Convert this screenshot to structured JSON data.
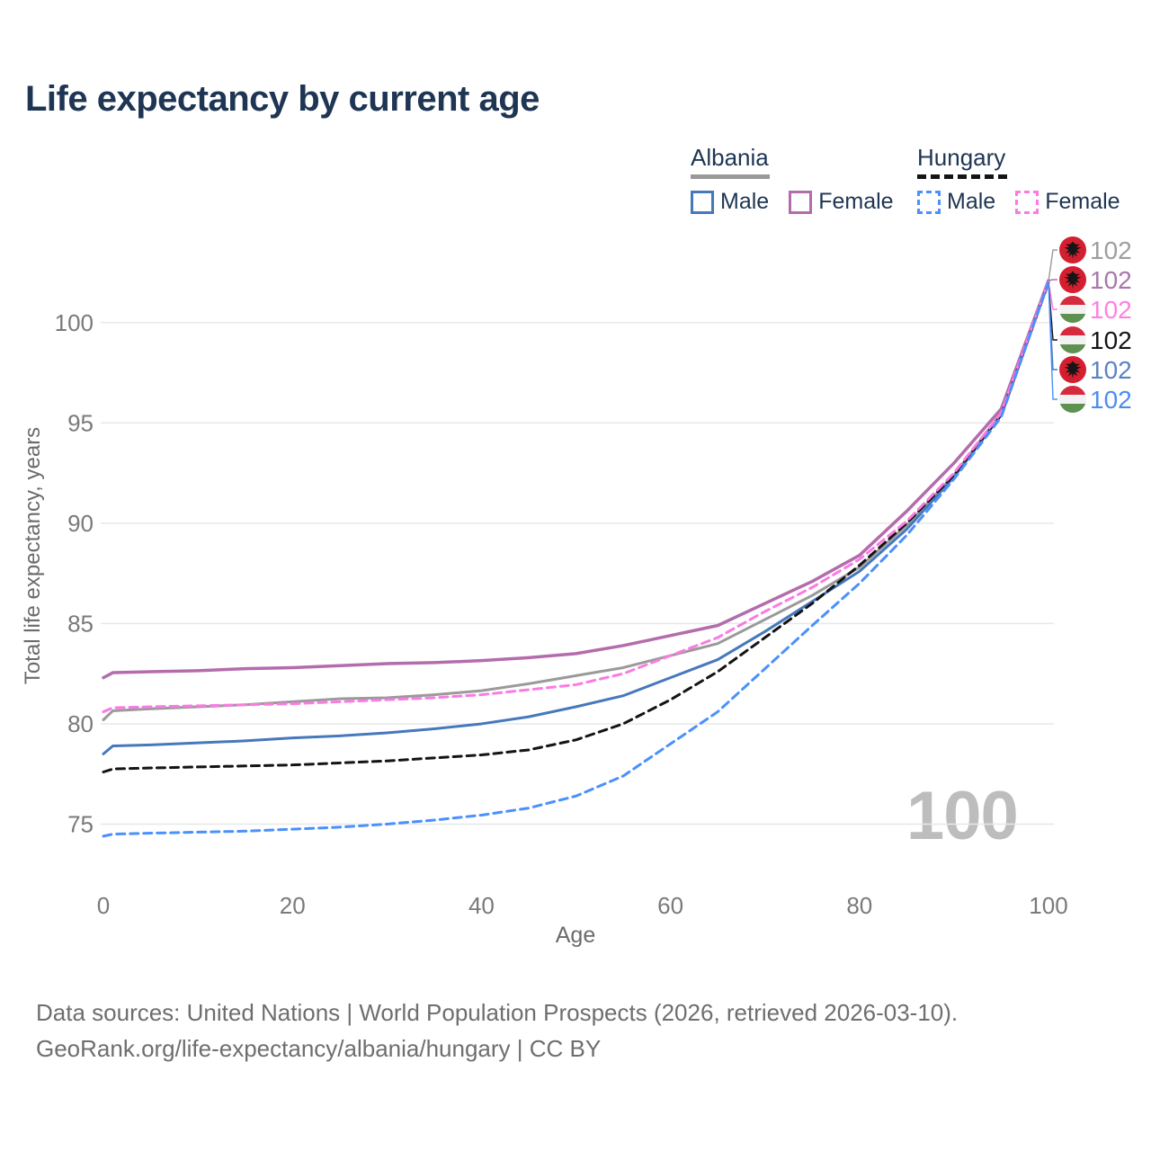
{
  "title": "Life expectancy by current age",
  "watermark_age": "100",
  "legend": {
    "groups": [
      {
        "label": "Albania",
        "underline_style": "solid",
        "underline_color": "#999999",
        "items": [
          {
            "label": "Male",
            "color": "#4678bc",
            "dashed": false
          },
          {
            "label": "Female",
            "color": "#b36cac",
            "dashed": false
          }
        ]
      },
      {
        "label": "Hungary",
        "underline_style": "dashed",
        "underline_color": "#141414",
        "items": [
          {
            "label": "Male",
            "color": "#4a90fe",
            "dashed": true
          },
          {
            "label": "Female",
            "color": "#fb7ae3",
            "dashed": true
          }
        ]
      }
    ]
  },
  "footer": {
    "line1": "Data sources: United Nations | World Population Prospects (2026, retrieved 2026-03-10).",
    "line2": "GeoRank.org/life-expectancy/albania/hungary | CC BY"
  },
  "end_labels": [
    {
      "series_key": "albania_total",
      "flag": "albania",
      "value": "102",
      "color": "#9e9e9e"
    },
    {
      "series_key": "albania_female",
      "flag": "albania",
      "value": "102",
      "color": "#a877ab"
    },
    {
      "series_key": "hungary_female",
      "flag": "hungary",
      "value": "102",
      "color": "#ff80e5"
    },
    {
      "series_key": "hungary_total",
      "flag": "hungary",
      "value": "102",
      "color": "#141414"
    },
    {
      "series_key": "albania_male",
      "flag": "albania",
      "value": "102",
      "color": "#5b83c3"
    },
    {
      "series_key": "hungary_male",
      "flag": "hungary",
      "value": "102",
      "color": "#4a8df0"
    }
  ],
  "chart_data": {
    "type": "line",
    "title": "Life expectancy by current age",
    "xlabel": "Age",
    "ylabel": "Total life expectancy, years",
    "xlim": [
      0,
      100
    ],
    "ylim": [
      73.5,
      103
    ],
    "x_ticks": [
      0,
      20,
      40,
      60,
      80,
      100
    ],
    "y_ticks": [
      75,
      80,
      85,
      90,
      95,
      100
    ],
    "grid": "horizontal",
    "legend_position": "top-right",
    "x": [
      0,
      1,
      5,
      10,
      15,
      20,
      25,
      30,
      35,
      40,
      45,
      50,
      55,
      60,
      65,
      70,
      75,
      80,
      85,
      90,
      95,
      100
    ],
    "series": [
      {
        "key": "albania_total",
        "name": "Albania — Both sexes",
        "country": "Albania",
        "sex": "Both",
        "color": "#9a9a9a",
        "dashed": false,
        "width": 3,
        "values": [
          80.2,
          80.65,
          80.75,
          80.85,
          80.95,
          81.1,
          81.25,
          81.3,
          81.45,
          81.65,
          82.0,
          82.4,
          82.8,
          83.4,
          84.0,
          85.2,
          86.4,
          87.8,
          89.9,
          92.4,
          95.5,
          102.05
        ]
      },
      {
        "key": "albania_female",
        "name": "Albania — Female",
        "country": "Albania",
        "sex": "Female",
        "color": "#b36cac",
        "dashed": false,
        "width": 3.5,
        "values": [
          82.3,
          82.55,
          82.6,
          82.65,
          82.75,
          82.8,
          82.9,
          83.0,
          83.05,
          83.15,
          83.3,
          83.5,
          83.9,
          84.4,
          84.9,
          86.0,
          87.1,
          88.4,
          90.6,
          93.0,
          95.7,
          102.1
        ]
      },
      {
        "key": "albania_male",
        "name": "Albania — Male",
        "country": "Albania",
        "sex": "Male",
        "color": "#4678bc",
        "dashed": false,
        "width": 3,
        "values": [
          78.5,
          78.9,
          78.95,
          79.05,
          79.15,
          79.3,
          79.4,
          79.55,
          79.75,
          80.0,
          80.35,
          80.85,
          81.4,
          82.3,
          83.2,
          84.6,
          86.1,
          87.6,
          89.7,
          92.3,
          95.4,
          102.0
        ]
      },
      {
        "key": "hungary_total",
        "name": "Hungary — Both sexes",
        "country": "Hungary",
        "sex": "Both",
        "color": "#141414",
        "dashed": true,
        "width": 3,
        "values": [
          77.6,
          77.75,
          77.8,
          77.85,
          77.9,
          77.95,
          78.05,
          78.15,
          78.3,
          78.45,
          78.7,
          79.2,
          80.0,
          81.2,
          82.6,
          84.3,
          86.0,
          87.9,
          90.0,
          92.4,
          95.4,
          102.0
        ]
      },
      {
        "key": "hungary_female",
        "name": "Hungary — Female",
        "country": "Hungary",
        "sex": "Female",
        "color": "#fb7ae3",
        "dashed": true,
        "width": 3,
        "values": [
          80.6,
          80.8,
          80.85,
          80.9,
          80.95,
          81.0,
          81.1,
          81.2,
          81.3,
          81.45,
          81.7,
          81.95,
          82.5,
          83.4,
          84.3,
          85.6,
          86.8,
          88.2,
          90.1,
          92.5,
          95.5,
          102.05
        ]
      },
      {
        "key": "hungary_male",
        "name": "Hungary — Male",
        "country": "Hungary",
        "sex": "Male",
        "color": "#4a90fe",
        "dashed": true,
        "width": 3,
        "values": [
          74.4,
          74.5,
          74.55,
          74.6,
          74.65,
          74.75,
          74.85,
          75.0,
          75.2,
          75.45,
          75.8,
          76.4,
          77.4,
          79.0,
          80.6,
          82.75,
          84.9,
          87.0,
          89.4,
          92.2,
          95.3,
          102.0
        ]
      }
    ]
  }
}
